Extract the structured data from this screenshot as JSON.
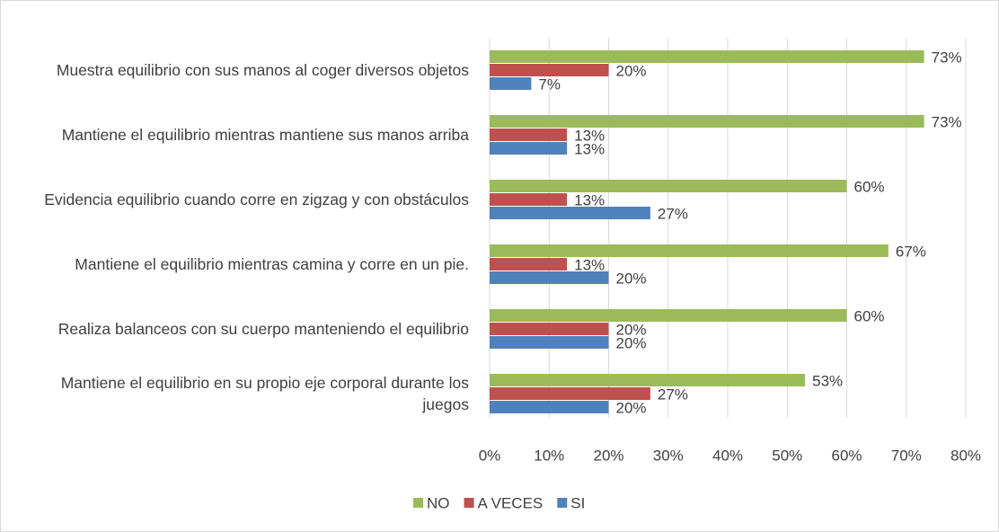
{
  "chart_data": {
    "type": "hbar",
    "categories": [
      "Muestra equilibrio con sus manos al coger diversos objetos",
      "Mantiene el equilibrio mientras mantiene sus manos arriba",
      "Evidencia equilibrio cuando corre en zigzag y con obstáculos",
      "Mantiene el equilibrio mientras camina y corre en un pie.",
      "Realiza balanceos con su cuerpo manteniendo el equilibrio",
      "Mantiene el equilibrio en su propio eje corporal durante los juegos"
    ],
    "series": [
      {
        "name": "NO",
        "color": "#9bbb59",
        "values": [
          73,
          73,
          60,
          67,
          60,
          53
        ],
        "value_labels": [
          "73%",
          "73%",
          "60%",
          "67%",
          "60%",
          "53%"
        ]
      },
      {
        "name": "A VECES",
        "color": "#c0504d",
        "values": [
          20,
          13,
          13,
          13,
          20,
          27
        ],
        "value_labels": [
          "20%",
          "13%",
          "13%",
          "13%",
          "20%",
          "27%"
        ]
      },
      {
        "name": "SI",
        "color": "#4f81bd",
        "values": [
          7,
          13,
          27,
          20,
          20,
          20
        ],
        "value_labels": [
          "7%",
          "13%",
          "27%",
          "20%",
          "20%",
          "20%"
        ]
      }
    ],
    "xlim": [
      0,
      80
    ],
    "xticks": [
      {
        "value": 0,
        "label": "0%"
      },
      {
        "value": 10,
        "label": "10%"
      },
      {
        "value": 20,
        "label": "20%"
      },
      {
        "value": 30,
        "label": "30%"
      },
      {
        "value": 40,
        "label": "40%"
      },
      {
        "value": 50,
        "label": "50%"
      },
      {
        "value": 60,
        "label": "60%"
      },
      {
        "value": 70,
        "label": "70%"
      },
      {
        "value": 80,
        "label": "80%"
      }
    ],
    "grid": true,
    "legend": "bottom"
  }
}
